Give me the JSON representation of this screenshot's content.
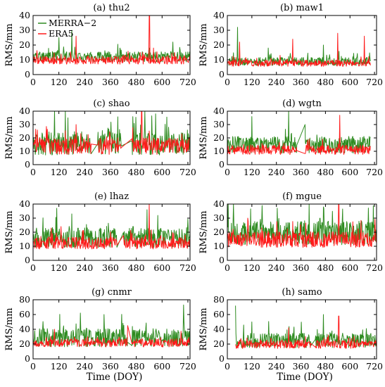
{
  "chart_data": [
    {
      "type": "line",
      "title": "(a) thu2",
      "ylabel": "RMS/mm",
      "xlabel": "",
      "xlim": [
        0,
        730
      ],
      "ylim": [
        0,
        40
      ],
      "xticks": [
        0,
        120,
        240,
        360,
        480,
        600,
        720
      ],
      "yticks": [
        0,
        10,
        20,
        30,
        40
      ],
      "legend": {
        "position": "top-left",
        "entries": [
          "MERRA−2",
          "ERA5"
        ]
      },
      "gaps": [],
      "spikes_merra": [
        [
          120,
          25
        ],
        [
          180,
          30
        ],
        [
          540,
          18
        ],
        [
          650,
          22
        ]
      ],
      "spikes_era5": [
        [
          200,
          26
        ],
        [
          541,
          40
        ],
        [
          560,
          18
        ]
      ],
      "series": [
        {
          "name": "MERRA−2",
          "color": "#2e8b20",
          "base": 11,
          "var": 5,
          "range": [
            0,
            730
          ]
        },
        {
          "name": "ERA5",
          "color": "#ff1a1a",
          "base": 9,
          "var": 4,
          "range": [
            0,
            730
          ]
        }
      ]
    },
    {
      "type": "line",
      "title": "(b) maw1",
      "ylabel": "RMS/mm",
      "xlabel": "",
      "xlim": [
        0,
        730
      ],
      "ylim": [
        0,
        40
      ],
      "xticks": [
        0,
        120,
        240,
        360,
        480,
        600,
        720
      ],
      "yticks": [
        0,
        10,
        20,
        30,
        40
      ],
      "gaps": [],
      "spikes_merra": [
        [
          50,
          32
        ],
        [
          200,
          18
        ],
        [
          470,
          20
        ]
      ],
      "spikes_era5": [
        [
          60,
          22
        ],
        [
          320,
          24
        ],
        [
          540,
          28
        ],
        [
          670,
          26
        ]
      ],
      "series": [
        {
          "name": "MERRA−2",
          "color": "#2e8b20",
          "base": 8,
          "var": 4,
          "range": [
            0,
            700
          ]
        },
        {
          "name": "ERA5",
          "color": "#ff1a1a",
          "base": 7,
          "var": 3,
          "range": [
            0,
            700
          ]
        }
      ]
    },
    {
      "type": "line",
      "title": "(c) shao",
      "ylabel": "RMS/mm",
      "xlabel": "",
      "xlim": [
        0,
        730
      ],
      "ylim": [
        0,
        40
      ],
      "xticks": [
        0,
        120,
        240,
        360,
        480,
        600,
        720
      ],
      "yticks": [
        0,
        10,
        20,
        30,
        40
      ],
      "gaps": [
        [
          270,
          300
        ],
        [
          410,
          460
        ]
      ],
      "spikes_merra": [
        [
          100,
          40
        ],
        [
          150,
          40
        ],
        [
          520,
          40
        ],
        [
          570,
          38
        ]
      ],
      "spikes_era5": [
        [
          200,
          30
        ],
        [
          505,
          40
        ]
      ],
      "series": [
        {
          "name": "MERRA−2",
          "color": "#2e8b20",
          "base": 13,
          "var": 12,
          "range": [
            0,
            730
          ]
        },
        {
          "name": "ERA5",
          "color": "#ff1a1a",
          "base": 12,
          "var": 9,
          "range": [
            0,
            730
          ]
        }
      ]
    },
    {
      "type": "line",
      "title": "(d) wgtn",
      "ylabel": "RMS/mm",
      "xlabel": "",
      "xlim": [
        0,
        730
      ],
      "ylim": [
        0,
        40
      ],
      "xticks": [
        0,
        120,
        240,
        360,
        480,
        600,
        720
      ],
      "yticks": [
        0,
        10,
        20,
        30,
        40
      ],
      "gaps": [
        [
          340,
          380
        ]
      ],
      "spikes_merra": [
        [
          120,
          36
        ],
        [
          300,
          40
        ],
        [
          380,
          30
        ]
      ],
      "spikes_era5": [
        [
          550,
          37
        ],
        [
          370,
          28
        ]
      ],
      "series": [
        {
          "name": "MERRA−2",
          "color": "#2e8b20",
          "base": 13,
          "var": 9,
          "range": [
            0,
            700
          ]
        },
        {
          "name": "ERA5",
          "color": "#ff1a1a",
          "base": 10,
          "var": 5,
          "range": [
            0,
            700
          ]
        }
      ]
    },
    {
      "type": "line",
      "title": "(e) lhaz",
      "ylabel": "RMS/mm",
      "xlabel": "",
      "xlim": [
        0,
        730
      ],
      "ylim": [
        0,
        40
      ],
      "xticks": [
        0,
        120,
        240,
        360,
        480,
        600,
        720
      ],
      "yticks": [
        0,
        10,
        20,
        30,
        40
      ],
      "gaps": [
        [
          390,
          420
        ]
      ],
      "spikes_merra": [
        [
          110,
          37
        ],
        [
          180,
          33
        ],
        [
          530,
          36
        ]
      ],
      "spikes_era5": [
        [
          540,
          40
        ],
        [
          130,
          24
        ]
      ],
      "series": [
        {
          "name": "MERRA−2",
          "color": "#2e8b20",
          "base": 14,
          "var": 10,
          "range": [
            0,
            730
          ]
        },
        {
          "name": "ERA5",
          "color": "#ff1a1a",
          "base": 11,
          "var": 6,
          "range": [
            0,
            730
          ]
        }
      ]
    },
    {
      "type": "line",
      "title": "(f) mgue",
      "ylabel": "RMS/mm",
      "xlabel": "",
      "xlim": [
        0,
        730
      ],
      "ylim": [
        0,
        40
      ],
      "xticks": [
        0,
        120,
        240,
        360,
        480,
        600,
        720
      ],
      "yticks": [
        0,
        10,
        20,
        30,
        40
      ],
      "gaps": [],
      "spikes_merra": [
        [
          30,
          40
        ],
        [
          400,
          40
        ],
        [
          470,
          38
        ]
      ],
      "spikes_era5": [
        [
          545,
          40
        ],
        [
          100,
          30
        ]
      ],
      "series": [
        {
          "name": "MERRA−2",
          "color": "#2e8b20",
          "base": 17,
          "var": 12,
          "range": [
            0,
            730
          ]
        },
        {
          "name": "ERA5",
          "color": "#ff1a1a",
          "base": 13,
          "var": 8,
          "range": [
            0,
            730
          ]
        }
      ]
    },
    {
      "type": "line",
      "title": "(g) cnmr",
      "ylabel": "RMS/mm",
      "xlabel": "Time (DOY)",
      "xlim": [
        0,
        730
      ],
      "ylim": [
        0,
        80
      ],
      "xticks": [
        0,
        120,
        240,
        360,
        480,
        600,
        720
      ],
      "yticks": [
        0,
        20,
        40,
        60,
        80
      ],
      "gaps": [
        [
          440,
          460
        ]
      ],
      "spikes_merra": [
        [
          220,
          62
        ],
        [
          700,
          73
        ],
        [
          330,
          60
        ]
      ],
      "spikes_era5": [
        [
          440,
          45
        ],
        [
          100,
          40
        ]
      ],
      "series": [
        {
          "name": "MERRA−2",
          "color": "#2e8b20",
          "base": 25,
          "var": 18,
          "range": [
            0,
            730
          ]
        },
        {
          "name": "ERA5",
          "color": "#ff1a1a",
          "base": 20,
          "var": 8,
          "range": [
            0,
            730
          ]
        }
      ]
    },
    {
      "type": "line",
      "title": "(h) samo",
      "ylabel": "RMS/mm",
      "xlabel": "Time (DOY)",
      "xlim": [
        0,
        730
      ],
      "ylim": [
        0,
        80
      ],
      "xticks": [
        0,
        120,
        240,
        360,
        480,
        600,
        720
      ],
      "yticks": [
        0,
        20,
        40,
        60,
        80
      ],
      "gaps": [
        [
          410,
          430
        ]
      ],
      "spikes_merra": [
        [
          40,
          72
        ],
        [
          120,
          50
        ],
        [
          470,
          60
        ]
      ],
      "spikes_era5": [
        [
          545,
          58
        ],
        [
          300,
          42
        ]
      ],
      "series": [
        {
          "name": "MERRA−2",
          "color": "#2e8b20",
          "base": 22,
          "var": 14,
          "range": [
            40,
            730
          ]
        },
        {
          "name": "ERA5",
          "color": "#ff1a1a",
          "base": 18,
          "var": 8,
          "range": [
            40,
            730
          ]
        }
      ]
    }
  ]
}
